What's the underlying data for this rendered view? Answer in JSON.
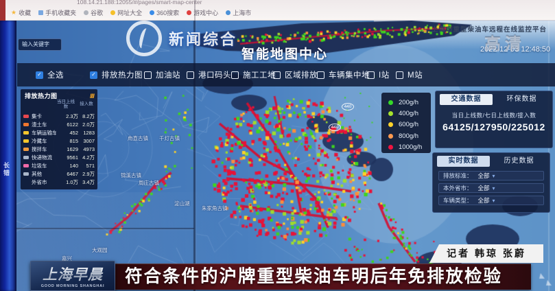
{
  "browser": {
    "url": "108.14.21.188:12055/#/pages/smart-map-center",
    "bookmarks": [
      {
        "label": "收藏",
        "icon": "star",
        "color": "#f5b83d"
      },
      {
        "label": "手机收藏夹",
        "icon": "folder",
        "color": "#7aa8e0"
      },
      {
        "label": "谷歌",
        "icon": "dot",
        "color": "#b0b4bc"
      },
      {
        "label": "网址大全",
        "icon": "dot",
        "color": "#f5c02a"
      },
      {
        "label": "360搜索",
        "icon": "dot",
        "color": "#3a8ce8"
      },
      {
        "label": "游戏中心",
        "icon": "dot",
        "color": "#e04040"
      },
      {
        "label": "上海市",
        "icon": "dot",
        "color": "#4a90d8"
      }
    ]
  },
  "left_screen": {
    "fragment": "长错"
  },
  "watermarks": {
    "channel": "新闻综合",
    "hd": "高清"
  },
  "platform_title": "上海市重型柴油车远程在线监控平台",
  "datetime": "2022-12-03 12:48:50",
  "map": {
    "title": "智能地图中心",
    "search_placeholder": "输入关键字",
    "bubbles": [
      "440",
      "440"
    ],
    "labels": [
      "甪直古镇",
      "千灯古镇",
      "锦溪古镇",
      "周庄古镇",
      "淀山湖",
      "朱家角古镇",
      "大观园",
      "嘉兴"
    ]
  },
  "toolbar": {
    "items": [
      {
        "label": "全选",
        "checked": true
      },
      {
        "label": "排放热力图",
        "checked": true
      },
      {
        "label": "加油站",
        "checked": false
      },
      {
        "label": "港口码头",
        "checked": false
      },
      {
        "label": "施工工地",
        "checked": false
      },
      {
        "label": "区域排放",
        "checked": false
      },
      {
        "label": "车辆集中地",
        "checked": false
      },
      {
        "label": "I站",
        "checked": false
      },
      {
        "label": "M站",
        "checked": false
      }
    ]
  },
  "heat_panel": {
    "title": "排放热力图",
    "decor": "////",
    "col_online": "当日上线数",
    "col_access": "接入数",
    "rows": [
      {
        "label": "集卡",
        "online": "2.3万",
        "access": "8.2万",
        "color": "#e6474e"
      },
      {
        "label": "渣土车",
        "online": "6122",
        "access": "2.0万",
        "color": "#f0762e"
      },
      {
        "label": "车辆运输车",
        "online": "452",
        "access": "1283",
        "color": "#f5c52c"
      },
      {
        "label": "冷藏车",
        "online": "815",
        "access": "3007",
        "color": "#f5c52c"
      },
      {
        "label": "搅拌车",
        "online": "1629",
        "access": "4973",
        "color": "#f09a3e"
      },
      {
        "label": "快递物流",
        "online": "9561",
        "access": "4.2万",
        "color": "#aab6c8"
      },
      {
        "label": "垃圾车",
        "online": "140",
        "access": "571",
        "color": "#ef6aa8"
      },
      {
        "label": "其他",
        "online": "6467",
        "access": "2.9万",
        "color": "#aab6c8"
      },
      {
        "label": "外省市",
        "online": "1.0万",
        "access": "3.4万",
        "color": null
      }
    ]
  },
  "legend": {
    "items": [
      {
        "label": "200g/h",
        "color": "#35d828"
      },
      {
        "label": "400g/h",
        "color": "#a6e22c"
      },
      {
        "label": "600g/h",
        "color": "#ffd22a"
      },
      {
        "label": "800g/h",
        "color": "#ff9a50"
      },
      {
        "label": "1000g/h",
        "color": "#f01440"
      }
    ]
  },
  "traffic_panel": {
    "tabs": [
      "交通数据",
      "环保数据"
    ],
    "metric_label": "当日上线数/七日上线数/接入数",
    "metric_value": "64125/127950/225012"
  },
  "realtime_panel": {
    "tabs": [
      "实时数据",
      "历史数据"
    ],
    "filters": [
      {
        "label": "排放标准：",
        "value": "全部"
      },
      {
        "label": "本外省市：",
        "value": "全部"
      },
      {
        "label": "车辆类型：",
        "value": "全部"
      }
    ]
  },
  "ticker": {
    "headline": "符合条件的沪牌重型柴油车明后年免排放检验",
    "credit": "记者 韩琼 张蔚",
    "program_logo": "上海早晨",
    "program_sub": "GOOD MORNING SHANGHAI"
  }
}
